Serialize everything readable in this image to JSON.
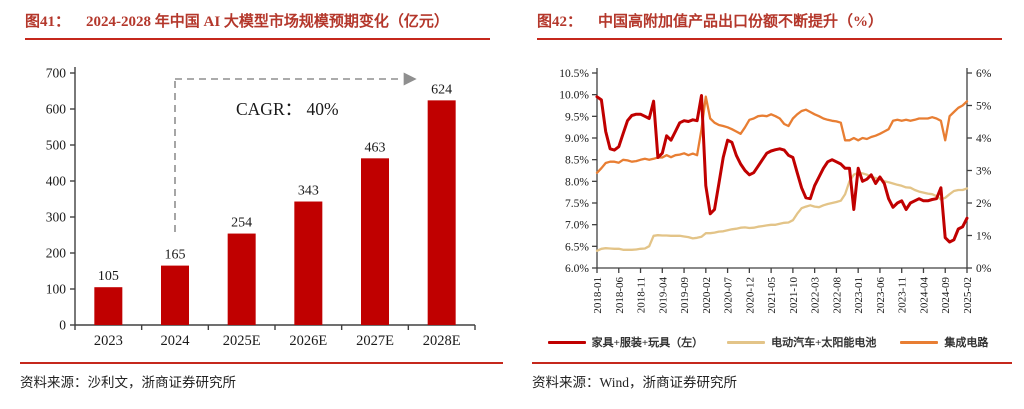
{
  "colors": {
    "title_red": "#b4372b",
    "rule_red": "#c5281c",
    "series_red": "#c00000",
    "series_tan": "#e3c488",
    "series_orange": "#e87e33",
    "dash_gray": "#8f8f8f",
    "axis_gray": "#404040",
    "text_dark": "#1a1a1a"
  },
  "fig41": {
    "label": "图41：",
    "title": "2024-2028 年中国 AI 大模型市场规模预期变化（亿元）",
    "source": "资料来源：沙利文，浙商证券研究所"
  },
  "fig42": {
    "label": "图42：",
    "title": "中国高附加值产品出口份额不断提升（%）",
    "source": "资料来源：Wind，浙商证券研究所"
  },
  "chart_data": [
    {
      "type": "bar",
      "title": "2024-2028 年中国 AI 大模型市场规模预期变化（亿元）",
      "categories": [
        "2023",
        "2024",
        "2025E",
        "2026E",
        "2027E",
        "2028E"
      ],
      "values": [
        105,
        165,
        254,
        343,
        463,
        624
      ],
      "ylim": [
        0,
        700
      ],
      "ytick_step": 100,
      "bar_color": "#c00000",
      "annotation": "CAGR：  40%",
      "annotation_arrow": {
        "from_category": "2024",
        "to_category": "2028E",
        "style": "dashed"
      },
      "grid": false,
      "legend": "none"
    },
    {
      "type": "line",
      "title": "中国高附加值产品出口份额不断提升（%）",
      "x_monthly_start": "2018-01",
      "x_monthly_end": "2025-02",
      "x_tick_labels": [
        "2018-01",
        "2018-06",
        "2018-11",
        "2019-04",
        "2019-09",
        "2020-02",
        "2020-07",
        "2020-12",
        "2021-05",
        "2021-10",
        "2022-03",
        "2022-08",
        "2023-01",
        "2023-06",
        "2023-11",
        "2024-04",
        "2024-09",
        "2025-02"
      ],
      "left_axis": {
        "min": 6.0,
        "max": 10.5,
        "step": 0.5,
        "label_format": "percent_1dp"
      },
      "right_axis": {
        "min": 0,
        "max": 6,
        "step": 1,
        "label_format": "percent_0dp"
      },
      "grid": false,
      "legend_position": "bottom",
      "series": [
        {
          "name": "家具+服装+玩具（左）",
          "axis": "left",
          "color": "#c00000",
          "values": [
            9.95,
            9.88,
            9.15,
            8.75,
            8.72,
            8.8,
            9.1,
            9.4,
            9.52,
            9.55,
            9.55,
            9.5,
            9.45,
            9.85,
            8.55,
            8.65,
            9.05,
            8.95,
            9.15,
            9.35,
            9.4,
            9.38,
            9.42,
            9.4,
            9.98,
            7.9,
            7.25,
            7.35,
            7.95,
            8.55,
            8.95,
            8.9,
            8.6,
            8.4,
            8.25,
            8.15,
            8.2,
            8.35,
            8.5,
            8.65,
            8.7,
            8.73,
            8.75,
            8.72,
            8.6,
            8.55,
            8.2,
            7.85,
            7.62,
            7.6,
            7.9,
            8.1,
            8.3,
            8.45,
            8.5,
            8.45,
            8.4,
            8.3,
            8.3,
            7.35,
            8.3,
            8.0,
            8.05,
            8.15,
            7.95,
            8.1,
            7.95,
            7.6,
            7.4,
            7.5,
            7.55,
            7.35,
            7.5,
            7.55,
            7.6,
            7.55,
            7.55,
            7.58,
            7.6,
            7.85,
            6.7,
            6.6,
            6.65,
            6.9,
            6.95,
            7.15
          ]
        },
        {
          "name": "电动汽车+太阳能电池",
          "axis": "right",
          "color": "#e3c488",
          "values": [
            0.53,
            0.59,
            0.61,
            0.6,
            0.59,
            0.59,
            0.56,
            0.56,
            0.56,
            0.57,
            0.59,
            0.6,
            0.67,
            0.99,
            1.01,
            1.0,
            1.0,
            0.99,
            0.99,
            0.99,
            0.97,
            0.95,
            0.91,
            0.93,
            0.96,
            1.07,
            1.07,
            1.09,
            1.12,
            1.13,
            1.16,
            1.19,
            1.21,
            1.24,
            1.25,
            1.23,
            1.24,
            1.27,
            1.29,
            1.31,
            1.33,
            1.33,
            1.36,
            1.39,
            1.4,
            1.47,
            1.67,
            1.84,
            1.89,
            1.93,
            1.89,
            1.87,
            1.93,
            1.97,
            2.0,
            2.03,
            2.07,
            2.27,
            2.67,
            2.87,
            2.93,
            2.91,
            2.87,
            2.8,
            2.77,
            2.73,
            2.67,
            2.64,
            2.6,
            2.56,
            2.53,
            2.48,
            2.47,
            2.4,
            2.35,
            2.32,
            2.29,
            2.27,
            2.21,
            2.11,
            2.16,
            2.27,
            2.37,
            2.4,
            2.4,
            2.45
          ]
        },
        {
          "name": "集成电路",
          "axis": "right",
          "color": "#e87e33",
          "values": [
            2.93,
            3.07,
            3.23,
            3.27,
            3.27,
            3.24,
            3.33,
            3.31,
            3.27,
            3.29,
            3.33,
            3.36,
            3.33,
            3.36,
            3.4,
            3.4,
            3.47,
            3.41,
            3.47,
            3.49,
            3.53,
            3.47,
            3.52,
            3.47,
            4.27,
            5.27,
            4.6,
            4.47,
            4.4,
            4.37,
            4.33,
            4.27,
            4.2,
            4.13,
            4.33,
            4.56,
            4.6,
            4.67,
            4.69,
            4.67,
            4.73,
            4.67,
            4.6,
            4.43,
            4.37,
            4.6,
            4.73,
            4.83,
            4.87,
            4.8,
            4.73,
            4.67,
            4.6,
            4.56,
            4.53,
            4.51,
            4.47,
            3.93,
            3.93,
            4.0,
            3.93,
            4.0,
            3.97,
            4.03,
            4.07,
            4.13,
            4.2,
            4.27,
            4.53,
            4.56,
            4.53,
            4.56,
            4.53,
            4.56,
            4.6,
            4.6,
            4.6,
            4.64,
            4.6,
            4.53,
            3.93,
            4.67,
            4.8,
            4.93,
            5.0,
            5.13
          ]
        }
      ]
    }
  ]
}
